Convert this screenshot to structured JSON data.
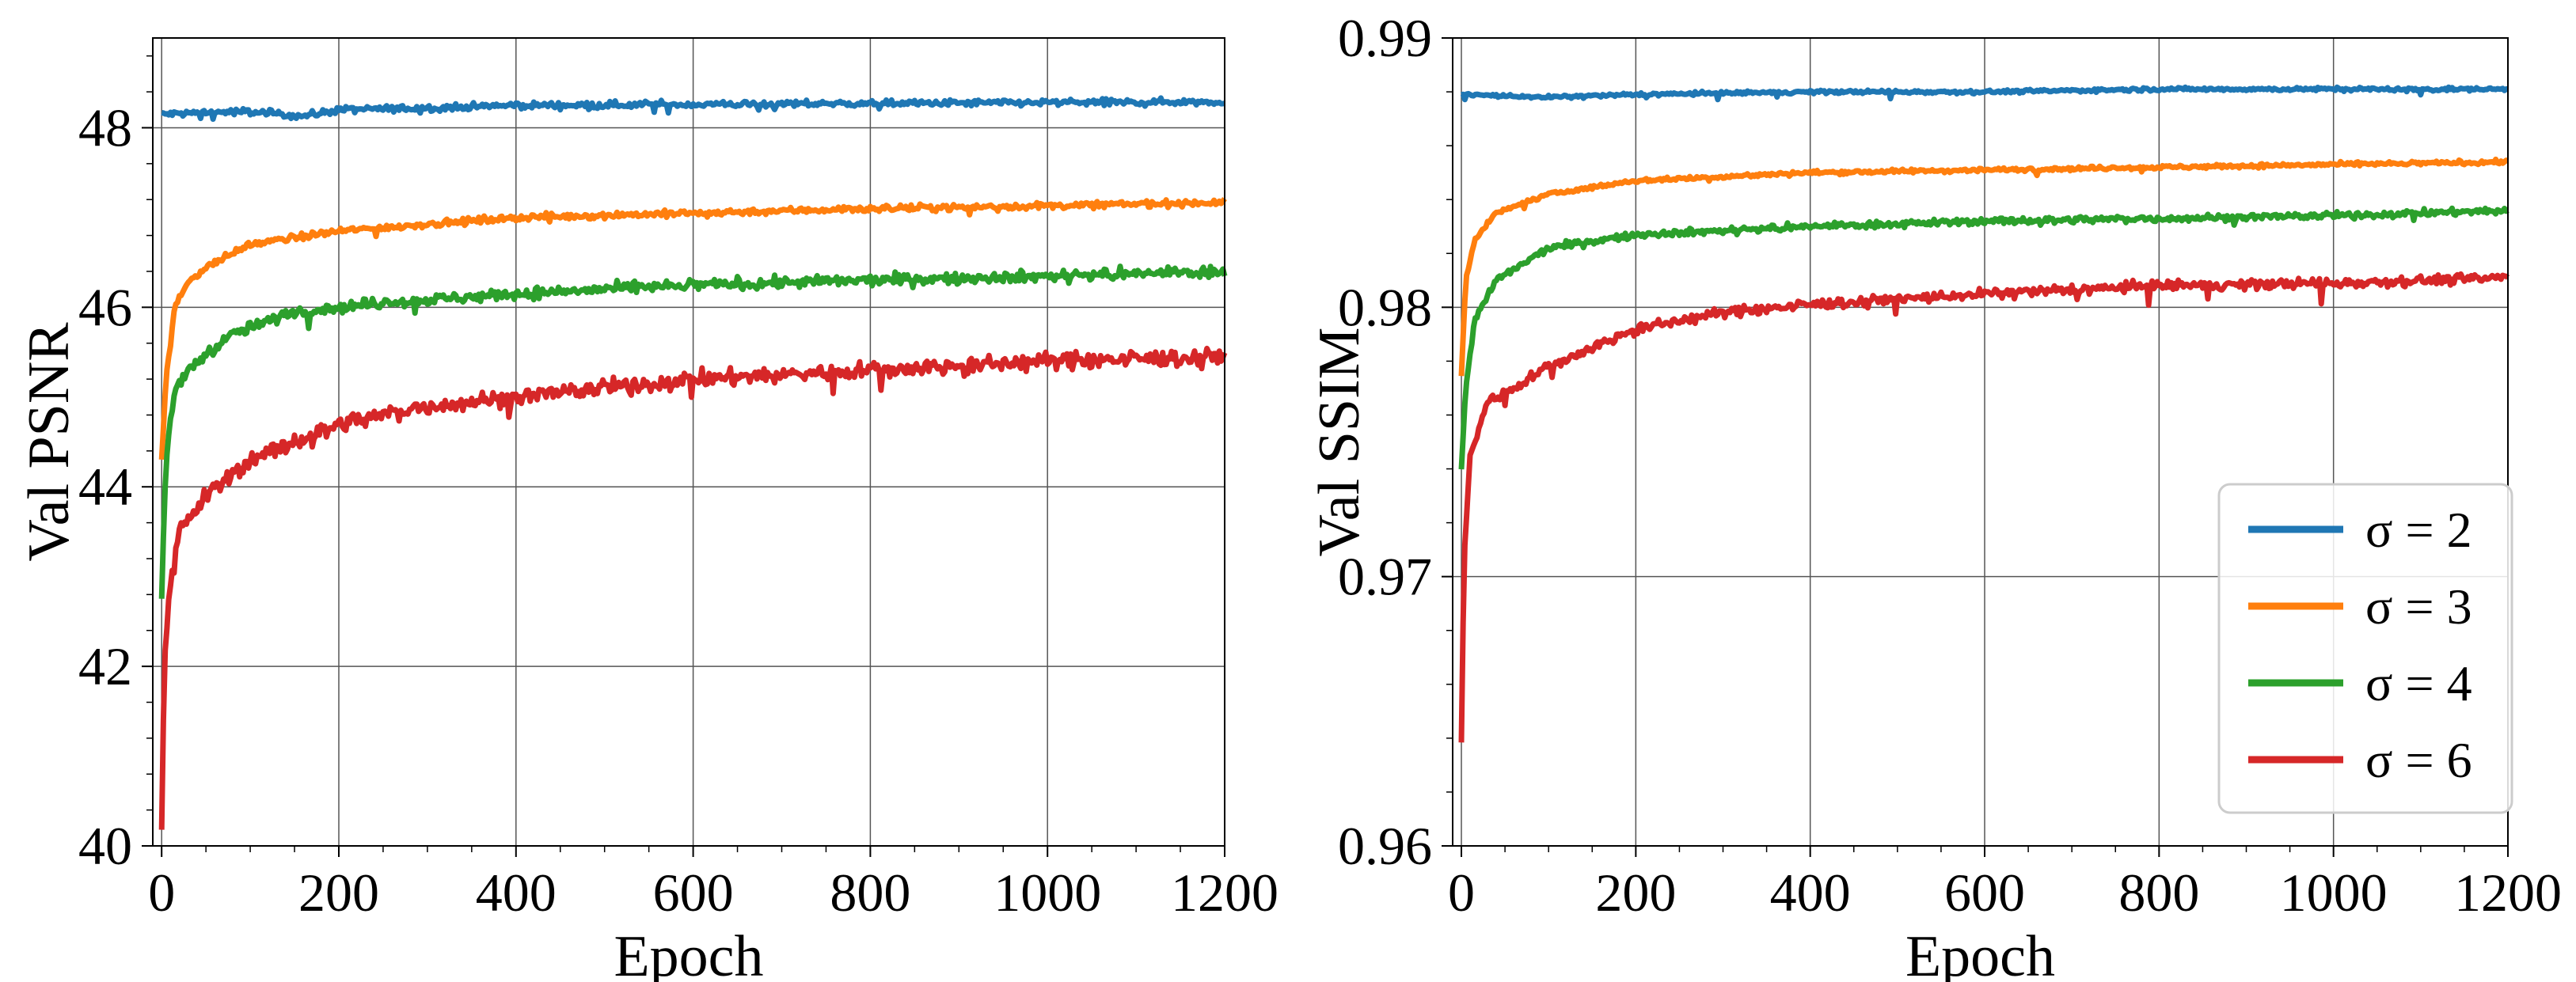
{
  "chart_data": [
    {
      "type": "line",
      "title": "",
      "xlabel": "Epoch",
      "ylabel": "Val PSNR",
      "xlim": [
        -10,
        1200
      ],
      "ylim": [
        40,
        49
      ],
      "xticks": [
        0,
        200,
        400,
        600,
        800,
        1000,
        1200
      ],
      "xtick_labels": [
        "0",
        "200",
        "400",
        "600",
        "800",
        "1000",
        "1200"
      ],
      "yticks": [
        40,
        42,
        44,
        46,
        48
      ],
      "ytick_labels": [
        "40",
        "42",
        "44",
        "46",
        "48"
      ],
      "grid": true,
      "legend": "none",
      "series": [
        {
          "name": "σ = 2",
          "color": "#1f77b4",
          "noise": 0.035,
          "points": [
            [
              0,
              48.15
            ],
            [
              50,
              48.17
            ],
            [
              100,
              48.18
            ],
            [
              160,
              48.13
            ],
            [
              200,
              48.2
            ],
            [
              300,
              48.22
            ],
            [
              400,
              48.25
            ],
            [
              600,
              48.26
            ],
            [
              800,
              48.27
            ],
            [
              1000,
              48.28
            ],
            [
              1200,
              48.29
            ]
          ]
        },
        {
          "name": "σ = 3",
          "color": "#ff7f0e",
          "noise": 0.035,
          "points": [
            [
              0,
              44.3
            ],
            [
              5,
              45.2
            ],
            [
              15,
              46.0
            ],
            [
              30,
              46.3
            ],
            [
              60,
              46.5
            ],
            [
              100,
              46.7
            ],
            [
              200,
              46.85
            ],
            [
              400,
              47.0
            ],
            [
              600,
              47.05
            ],
            [
              800,
              47.1
            ],
            [
              1000,
              47.13
            ],
            [
              1200,
              47.17
            ]
          ]
        },
        {
          "name": "σ = 4",
          "color": "#2ca02c",
          "noise": 0.06,
          "points": [
            [
              0,
              42.8
            ],
            [
              5,
              44.3
            ],
            [
              15,
              45.1
            ],
            [
              40,
              45.4
            ],
            [
              80,
              45.7
            ],
            [
              150,
              45.95
            ],
            [
              250,
              46.05
            ],
            [
              400,
              46.15
            ],
            [
              600,
              46.25
            ],
            [
              800,
              46.3
            ],
            [
              1000,
              46.35
            ],
            [
              1200,
              46.4
            ]
          ]
        },
        {
          "name": "σ = 6",
          "color": "#d62728",
          "noise": 0.09,
          "points": [
            [
              0,
              40.2
            ],
            [
              3,
              42.0
            ],
            [
              8,
              42.8
            ],
            [
              20,
              43.5
            ],
            [
              50,
              43.9
            ],
            [
              100,
              44.3
            ],
            [
              200,
              44.7
            ],
            [
              300,
              44.9
            ],
            [
              400,
              45.0
            ],
            [
              600,
              45.2
            ],
            [
              800,
              45.3
            ],
            [
              1000,
              45.4
            ],
            [
              1200,
              45.45
            ]
          ]
        }
      ]
    },
    {
      "type": "line",
      "title": "",
      "xlabel": "Epoch",
      "ylabel": "Val SSIM",
      "xlim": [
        -10,
        1200
      ],
      "ylim": [
        0.96,
        0.99
      ],
      "xticks": [
        0,
        200,
        400,
        600,
        800,
        1000,
        1200
      ],
      "xtick_labels": [
        "0",
        "200",
        "400",
        "600",
        "800",
        "1000",
        "1200"
      ],
      "yticks": [
        0.96,
        0.97,
        0.98,
        0.99
      ],
      "ytick_labels": [
        "0.96",
        "0.97",
        "0.98",
        "0.99"
      ],
      "grid": true,
      "legend": "bottom-right",
      "series": [
        {
          "name": "σ = 2",
          "color": "#1f77b4",
          "noise": 6e-05,
          "points": [
            [
              0,
              0.9879
            ],
            [
              100,
              0.9878
            ],
            [
              200,
              0.9879
            ],
            [
              400,
              0.988
            ],
            [
              600,
              0.988
            ],
            [
              800,
              0.9881
            ],
            [
              1000,
              0.9881
            ],
            [
              1200,
              0.9881
            ]
          ]
        },
        {
          "name": "σ = 3",
          "color": "#ff7f0e",
          "noise": 7e-05,
          "points": [
            [
              0,
              0.9775
            ],
            [
              5,
              0.981
            ],
            [
              15,
              0.9825
            ],
            [
              40,
              0.9835
            ],
            [
              100,
              0.9842
            ],
            [
              200,
              0.9847
            ],
            [
              400,
              0.985
            ],
            [
              600,
              0.9851
            ],
            [
              800,
              0.9852
            ],
            [
              1000,
              0.9853
            ],
            [
              1200,
              0.9854
            ]
          ]
        },
        {
          "name": "σ = 4",
          "color": "#2ca02c",
          "noise": 0.00012,
          "points": [
            [
              0,
              0.974
            ],
            [
              5,
              0.977
            ],
            [
              15,
              0.9795
            ],
            [
              40,
              0.981
            ],
            [
              100,
              0.9822
            ],
            [
              200,
              0.9827
            ],
            [
              400,
              0.983
            ],
            [
              600,
              0.9832
            ],
            [
              800,
              0.9833
            ],
            [
              1000,
              0.9834
            ],
            [
              1200,
              0.9836
            ]
          ]
        },
        {
          "name": "σ = 6",
          "color": "#d62728",
          "noise": 0.00018,
          "points": [
            [
              0,
              0.9638
            ],
            [
              3,
              0.9705
            ],
            [
              10,
              0.9745
            ],
            [
              30,
              0.9765
            ],
            [
              60,
              0.977
            ],
            [
              100,
              0.9778
            ],
            [
              200,
              0.9792
            ],
            [
              300,
              0.9798
            ],
            [
              400,
              0.9801
            ],
            [
              600,
              0.9805
            ],
            [
              800,
              0.9808
            ],
            [
              1000,
              0.9809
            ],
            [
              1200,
              0.9811
            ]
          ]
        }
      ]
    }
  ],
  "legend": {
    "items": [
      "σ = 2",
      "σ = 3",
      "σ = 4",
      "σ = 6"
    ],
    "colors": [
      "#1f77b4",
      "#ff7f0e",
      "#2ca02c",
      "#d62728"
    ]
  }
}
